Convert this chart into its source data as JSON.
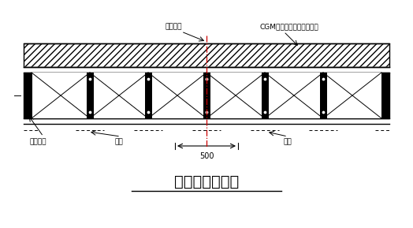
{
  "title": "预制钢梁示意图",
  "title_fontsize": 14,
  "label_liang": "梁跨中线",
  "label_CGM": "CGM高强无收缩灌浆料灌实",
  "label_duila": "对拉螺栓",
  "label_jiaogan1": "角钢",
  "label_jiaogan2": "角钢",
  "label_500": "500",
  "bg_color": "#ffffff",
  "line_color": "#000000",
  "centerline_color": "#cc0000",
  "fig_width": 5.24,
  "fig_height": 2.89,
  "dpi": 100
}
